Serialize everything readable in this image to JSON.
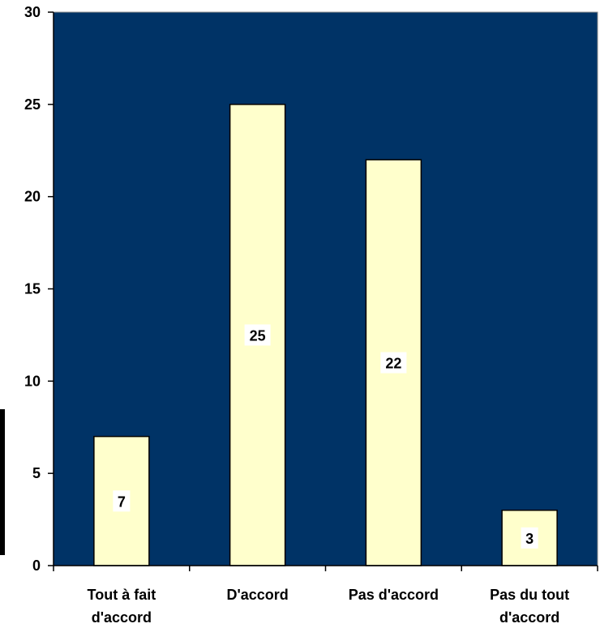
{
  "chart_data": {
    "type": "bar",
    "title": "",
    "xlabel": "",
    "ylabel": "",
    "categories": [
      [
        "Tout à fait",
        "d'accord"
      ],
      [
        "D'accord"
      ],
      [
        "Pas d'accord"
      ],
      [
        "Pas du tout",
        "d'accord"
      ]
    ],
    "values": [
      7,
      25,
      22,
      3
    ],
    "data_labels": [
      "7",
      "25",
      "22",
      "3"
    ],
    "ylim": [
      0,
      30
    ],
    "yticks": [
      0,
      5,
      10,
      15,
      20,
      25,
      30
    ],
    "ytick_labels": [
      "0",
      "5",
      "10",
      "15",
      "20",
      "25",
      "30"
    ],
    "grid": false,
    "legend": "none",
    "colors": {
      "plot_background": "#003366",
      "bar_fill": "#ffffcc",
      "bar_stroke": "#000000",
      "axis": "#000000"
    }
  }
}
